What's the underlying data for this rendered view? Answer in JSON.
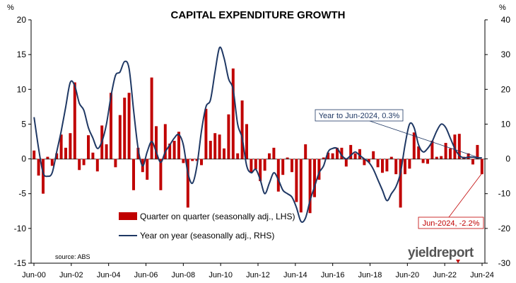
{
  "chart_data": {
    "type": "bar+line",
    "title": "CAPITAL EXPENDITURE GROWTH",
    "y_left_unit": "%",
    "y_right_unit": "%",
    "ylim_left": [
      -15,
      20
    ],
    "ylim_right": [
      -30,
      40
    ],
    "yticks_left": [
      "20",
      "15",
      "10",
      "5",
      "0",
      "-5",
      "-10",
      "-15"
    ],
    "yticks_right": [
      "40",
      "30",
      "20",
      "10",
      "0",
      "-10",
      "-20",
      "-30"
    ],
    "x_tick_labels": [
      "Jun-00",
      "Jun-02",
      "Jun-04",
      "Jun-06",
      "Jun-08",
      "Jun-10",
      "Jun-12",
      "Jun-14",
      "Jun-16",
      "Jun-18",
      "Jun-20",
      "Jun-22",
      "Jun-24"
    ],
    "x_start": "Jun-00",
    "x_end": "Jun-24",
    "grid": false,
    "legend_position": "bottom-center",
    "source": "source: ABS",
    "brand": "yieldreport",
    "annotations": [
      {
        "text": "Year to Jun-2024, 0.3%",
        "style": "blue-box"
      },
      {
        "text": "Jun-2024, -2.2%",
        "style": "red-box"
      }
    ],
    "series": [
      {
        "name": "Quarter on quarter (seasonally adj., LHS)",
        "type": "bar",
        "axis": "left",
        "color": "#c00000",
        "values": [
          1.2,
          -2.4,
          -5,
          0.3,
          -1,
          0.8,
          3.5,
          1.6,
          3.7,
          11,
          -1.6,
          -0.9,
          3.4,
          0.9,
          -1.8,
          4.8,
          2.1,
          9.5,
          -1.2,
          6.3,
          8.8,
          9.5,
          -4.5,
          1.6,
          -1.9,
          -3,
          11.7,
          4.7,
          -4.5,
          5,
          2.2,
          2.6,
          3.9,
          -0.6,
          -7,
          -0.3,
          -0.3,
          -0.9,
          7.2,
          2.6,
          3.7,
          3.5,
          1.5,
          6.4,
          13,
          0.8,
          8.4,
          5,
          -2,
          -1.5,
          -3.2,
          -1.7,
          0.8,
          1.6,
          -4.7,
          -2.3,
          0.2,
          -1.9,
          -6.2,
          -7.7,
          2.1,
          -7.8,
          -5.5,
          -3,
          0.2,
          0.9,
          0.8,
          1.6,
          1.6,
          -1.1,
          2,
          0.8,
          1.4,
          -0.9,
          -0.5,
          1.1,
          -1.2,
          -2,
          -1.8,
          0.3,
          -2.2,
          -7,
          -2.2,
          -1.4,
          3.8,
          1.8,
          -0.6,
          -0.7,
          2.6,
          0.3,
          0.4,
          2.3,
          1.5,
          3.5,
          3.6,
          0.3,
          0.8,
          -0.8,
          2,
          -2.2
        ]
      },
      {
        "name": "Year on year (seasonally adj., RHS)",
        "type": "line",
        "axis": "right",
        "color": "#1f3864",
        "values": [
          12,
          3,
          -4,
          -5,
          -4,
          2,
          8,
          15,
          22,
          21,
          16,
          14,
          9,
          6,
          3,
          5,
          10,
          18,
          24,
          25,
          28,
          26,
          14,
          3,
          -2,
          2,
          5,
          2,
          -1,
          2,
          4,
          6,
          7,
          4,
          -4,
          -7,
          -2,
          8,
          15,
          17,
          25,
          32,
          29,
          23,
          20,
          10,
          6,
          -2,
          -4,
          -3,
          -6,
          -10,
          -7,
          -4,
          -6,
          -9,
          -10,
          -11,
          -14,
          -18,
          -17,
          -12,
          -8,
          -4,
          -2,
          2,
          3,
          3,
          1,
          0,
          1,
          2,
          1,
          0,
          -1,
          -3,
          -6,
          -9,
          -12,
          -10,
          -8,
          -4,
          4,
          10,
          9,
          4,
          2,
          3,
          5,
          8,
          10,
          9,
          6,
          3,
          1,
          0.3,
          0.5,
          0.5,
          0.3,
          0.3
        ]
      }
    ]
  }
}
